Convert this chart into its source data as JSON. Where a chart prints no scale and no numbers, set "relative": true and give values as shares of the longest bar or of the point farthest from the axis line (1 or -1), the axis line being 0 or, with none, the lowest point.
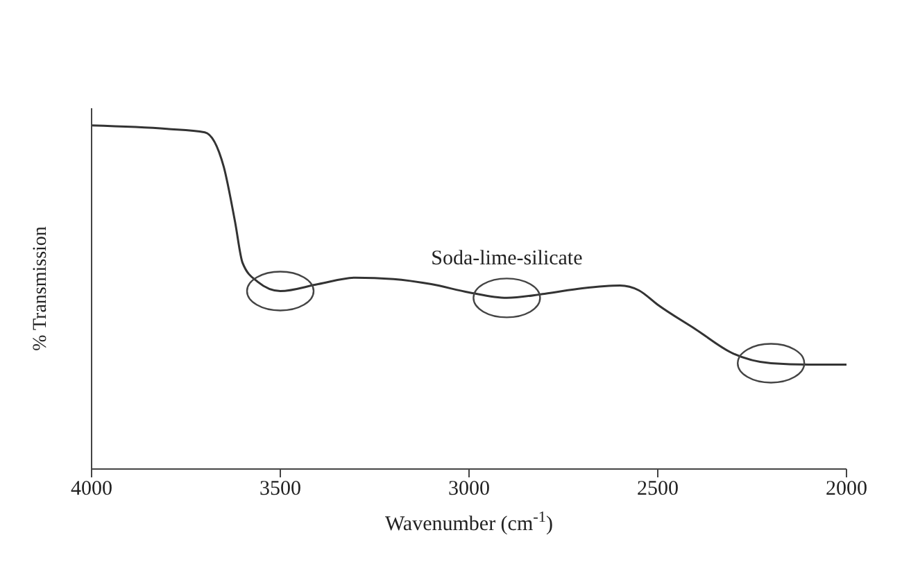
{
  "chart_data": {
    "type": "line",
    "relative": true,
    "xlabel": "Wavenumber (cm$^{-1}$)",
    "ylabel": "% Transmission",
    "xlim": [
      4000,
      2000
    ],
    "xticks": [
      4000,
      3500,
      3000,
      2500,
      2000
    ],
    "marker": "none",
    "line_style": "solid",
    "series": [
      {
        "name": "Soda-lime-silicate",
        "color": "#333333",
        "x": [
          4000,
          3800,
          3700,
          3650,
          3620,
          3600,
          3560,
          3500,
          3400,
          3300,
          3200,
          3100,
          3000,
          2900,
          2800,
          2700,
          2600,
          2550,
          2500,
          2400,
          2300,
          2200,
          2100,
          2000
        ],
        "values": [
          1.0,
          0.99,
          0.98,
          0.88,
          0.72,
          0.6,
          0.545,
          0.518,
          0.538,
          0.557,
          0.553,
          0.538,
          0.514,
          0.498,
          0.51,
          0.526,
          0.534,
          0.52,
          0.478,
          0.407,
          0.336,
          0.308,
          0.304,
          0.304
        ]
      }
    ]
  }
}
